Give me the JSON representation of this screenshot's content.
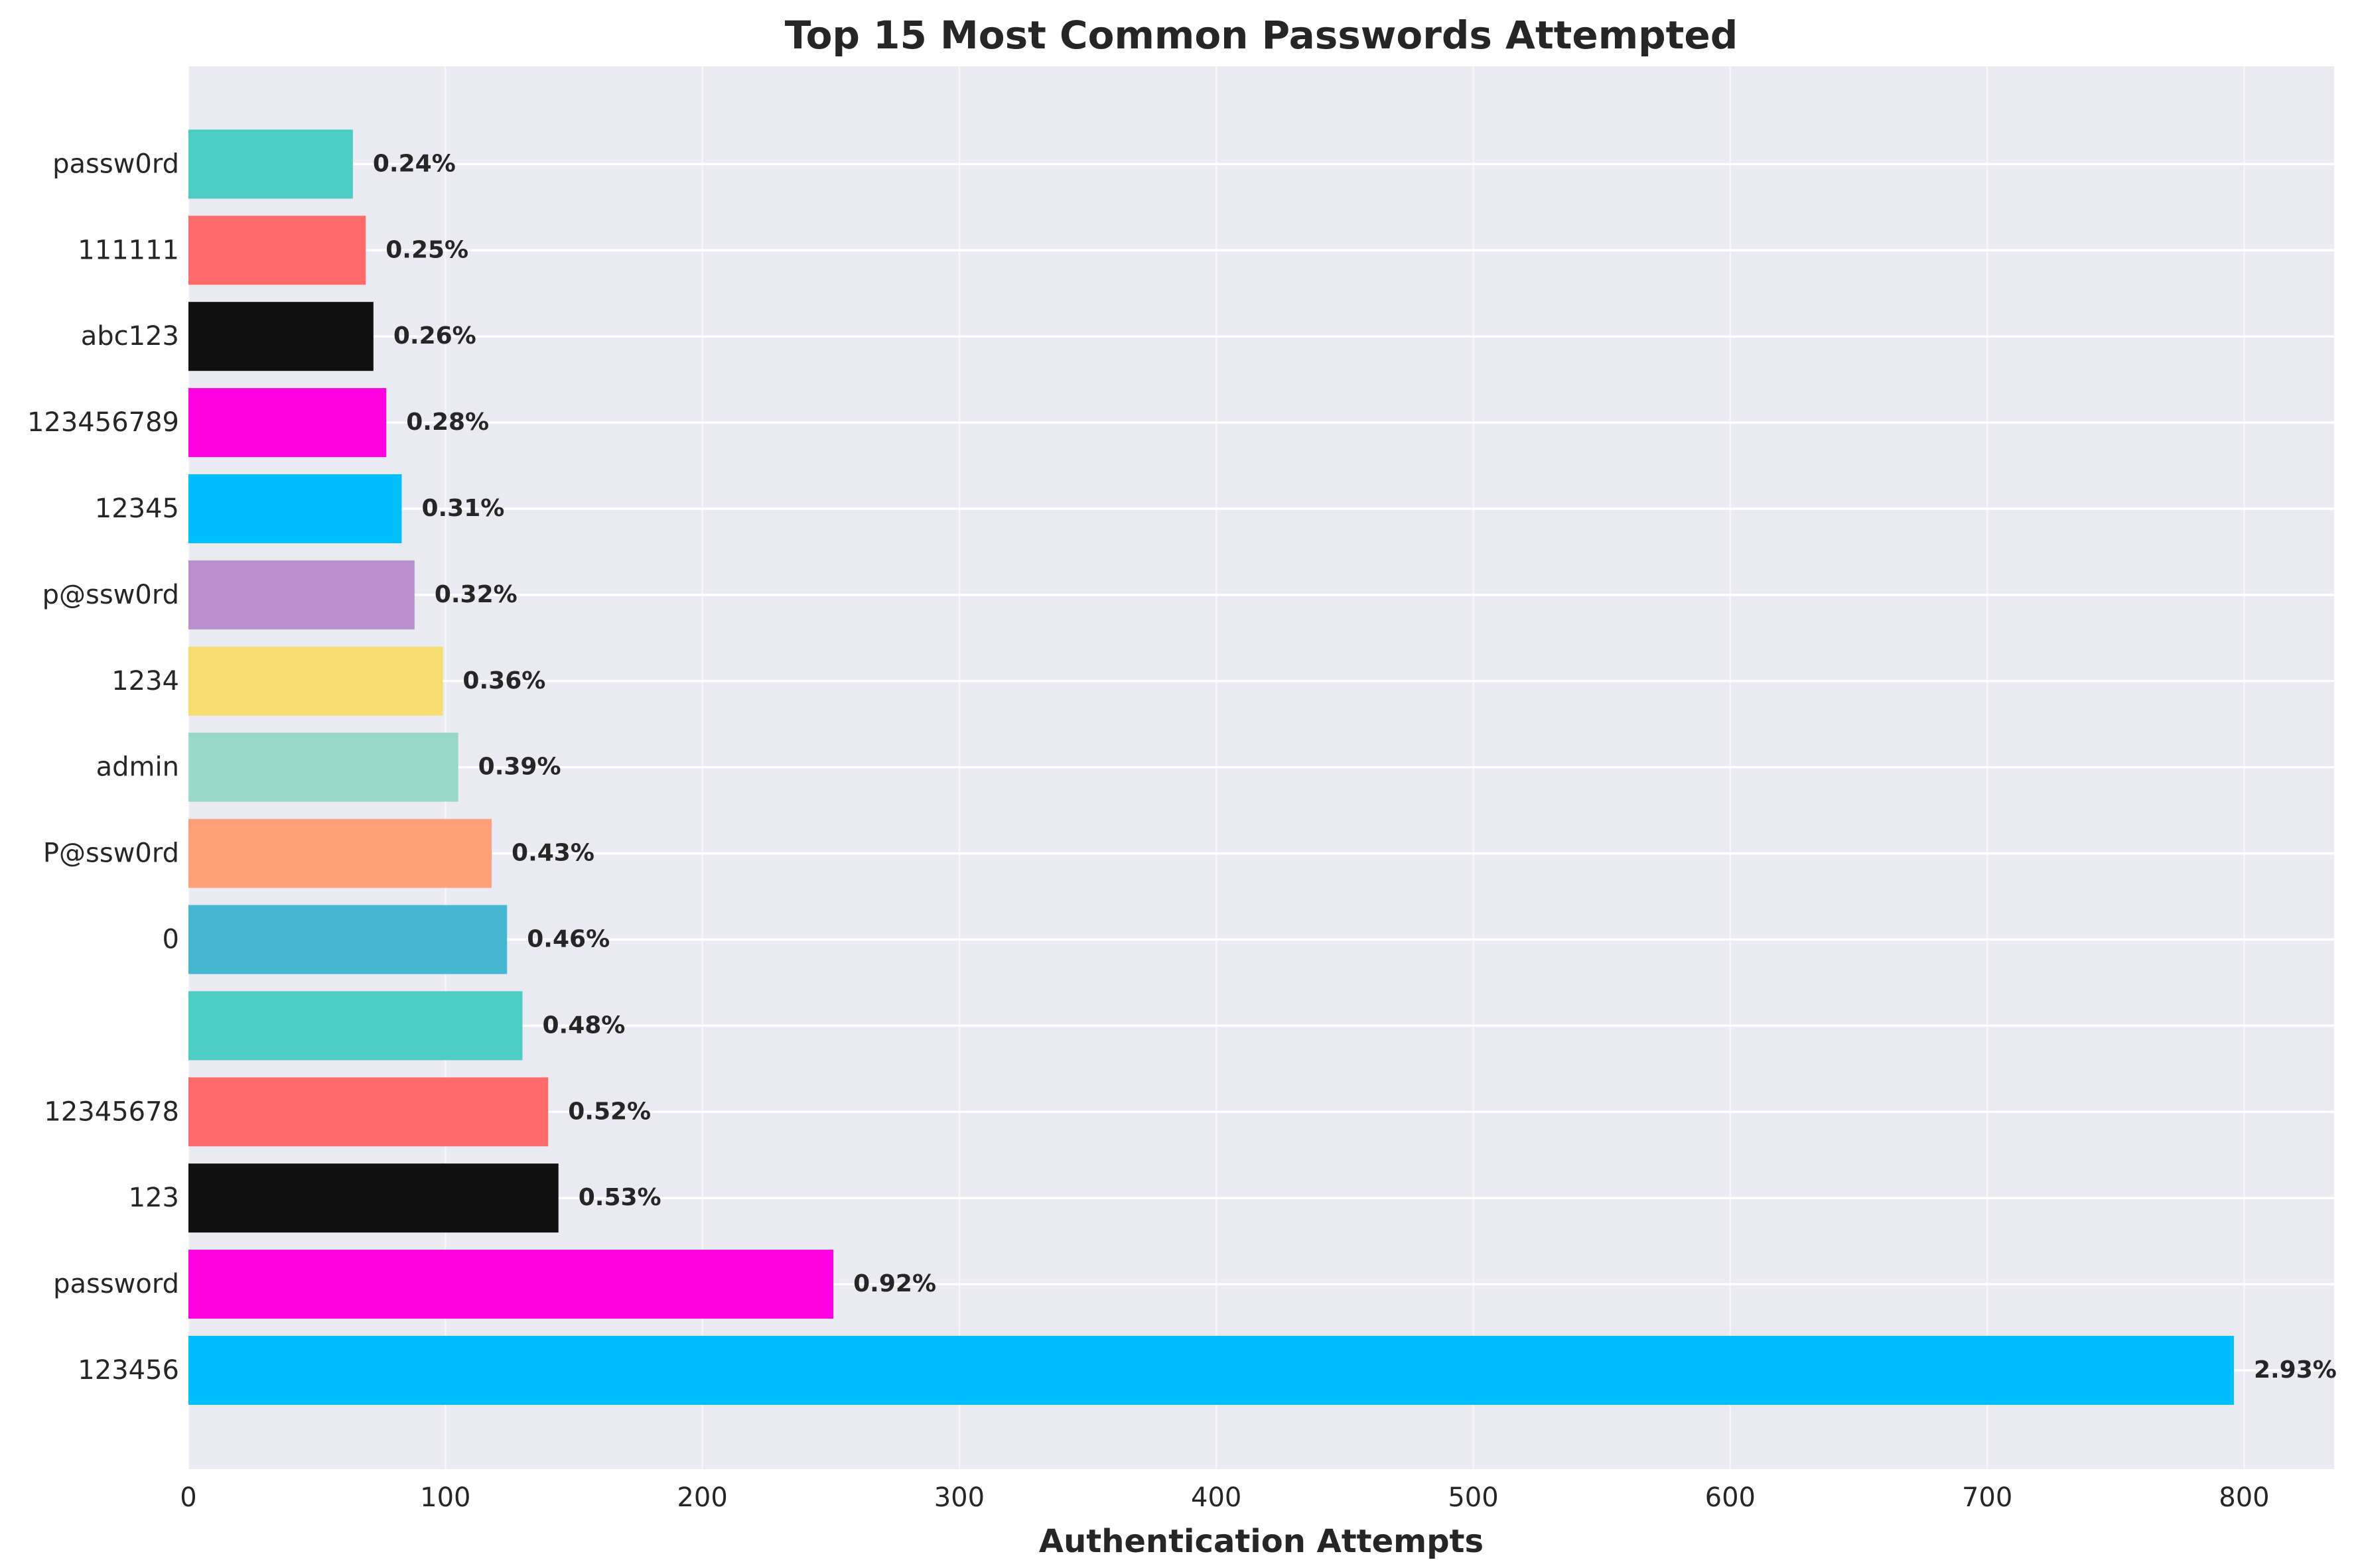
{
  "chart_data": {
    "type": "bar",
    "orientation": "horizontal",
    "title": "Top 15 Most Common Passwords Attempted",
    "xlabel": "Authentication Attempts",
    "ylabel": "",
    "xlim": [
      0,
      835
    ],
    "xticks": [
      0,
      100,
      200,
      300,
      400,
      500,
      600,
      700,
      800
    ],
    "grid": true,
    "legend": "none",
    "background_color": "#EAEAF2",
    "categories": [
      "123456",
      "password",
      "123",
      "12345678",
      "",
      "0",
      "P@ssw0rd",
      "admin",
      "1234",
      "p@ssw0rd",
      "12345",
      "123456789",
      "abc123",
      "111111",
      "passw0rd"
    ],
    "values": [
      796,
      251,
      144,
      140,
      130,
      124,
      118,
      105,
      99,
      88,
      83,
      77,
      72,
      69,
      64
    ],
    "labels": [
      "2.93%",
      "0.92%",
      "0.53%",
      "0.52%",
      "0.48%",
      "0.46%",
      "0.43%",
      "0.39%",
      "0.36%",
      "0.32%",
      "0.31%",
      "0.28%",
      "0.26%",
      "0.25%",
      "0.24%"
    ],
    "colors": [
      "#00BFFF",
      "#FF00E1",
      "#111111",
      "#FF6B6B",
      "#4ECDC4",
      "#45B7D1",
      "#FFA07A",
      "#98D8C8",
      "#F7DC6F",
      "#BB8FCE",
      "#00BFFF",
      "#FF00E1",
      "#111111",
      "#FF6B6B",
      "#4ECDC4"
    ]
  }
}
